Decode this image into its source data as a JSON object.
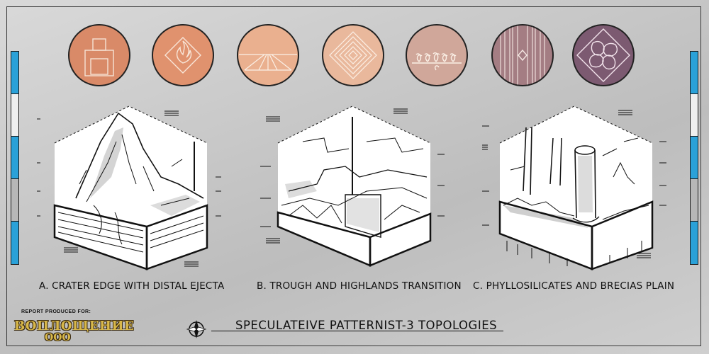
{
  "colors": {
    "background": "#c8c8c8",
    "accent_blue": "#2aa1d8",
    "client_gold": "#d8b84a",
    "ink": "#111111"
  },
  "header_icons": [
    {
      "name": "stacked-blocks-pattern-icon",
      "fill": "#d98a68"
    },
    {
      "name": "flame-diamond-pattern-icon",
      "fill": "#e0926e"
    },
    {
      "name": "converging-lines-pattern-icon",
      "fill": "#eab08f"
    },
    {
      "name": "concentric-diamonds-pattern-icon",
      "fill": "#e9b89c"
    },
    {
      "name": "wave-swirl-pattern-icon",
      "fill": "#d0a79a"
    },
    {
      "name": "vertical-stripes-pattern-icon",
      "fill": "#a47d83"
    },
    {
      "name": "quatrefoil-knot-pattern-icon",
      "fill": "#7c5a71"
    }
  ],
  "panels": [
    {
      "caption": "A. CRATER EDGE WITH DISTAL EJECTA"
    },
    {
      "caption": "B. TROUGH AND HIGHLANDS TRANSITION"
    },
    {
      "caption": "C. PHYLLOSILICATES AND BRECIAS PLAIN"
    }
  ],
  "footer": {
    "title": "SPECULATEIVE PATTERNIST-3 TOPOLOGIES",
    "report_label": "REPORT PRODUCED FOR:",
    "client_name": "ВОПЛОЩЕНИЕ",
    "client_sub": "ООО"
  }
}
